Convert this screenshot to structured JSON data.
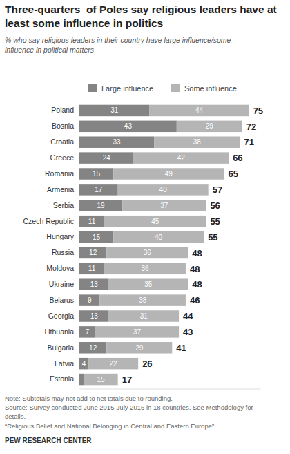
{
  "chart_data": {
    "type": "bar",
    "orientation": "horizontal",
    "stacked": true,
    "data_labels": true,
    "tick_labels": "y",
    "legend": "top",
    "grid": false,
    "title": [
      "Three-quarters  of Poles say religious leaders have at",
      "least some influence in politics"
    ],
    "subtitle": [
      "% who say religious leaders in their country have large influence/some",
      "influence in political matters"
    ],
    "categories": [
      "Poland",
      "Bosnia",
      "Croatia",
      "Greece",
      "Romania",
      "Armenia",
      "Serbia",
      "Czech Republic",
      "Hungary",
      "Russia",
      "Moldova",
      "Ukraine",
      "Belarus",
      "Georgia",
      "Lithuania",
      "Bulgaria",
      "Latvia",
      "Estonia"
    ],
    "series": [
      {
        "name": "Large influence",
        "color": "#848484",
        "values": [
          31,
          43,
          33,
          24,
          15,
          17,
          19,
          11,
          15,
          12,
          11,
          13,
          9,
          13,
          7,
          12,
          4,
          2
        ],
        "value_labels": [
          "31",
          "43",
          "33",
          "24",
          "15",
          "17",
          "19",
          "11",
          "15",
          "12",
          "11",
          "13",
          "9",
          "13",
          "7",
          "12",
          "4",
          null
        ]
      },
      {
        "name": "Some influence",
        "color": "#b5b5b5",
        "values": [
          44,
          29,
          38,
          42,
          49,
          40,
          37,
          45,
          40,
          36,
          36,
          35,
          38,
          31,
          37,
          29,
          22,
          15
        ]
      }
    ],
    "totals": [
      75,
      72,
      71,
      66,
      65,
      57,
      56,
      55,
      55,
      48,
      48,
      48,
      46,
      44,
      43,
      41,
      26,
      17
    ],
    "xlim": [
      0,
      80
    ],
    "xticks": [],
    "annotations": [
      "Note: Subtotals may not add to net totals due to rounding.",
      "Source: Survey conducted June 2015-July 2016 in 18 countries. See Methodology for",
      "details.",
      "“Religious Belief and National Belonging in Central and Eastern Europe”",
      "PEW RESEARCH CENTER"
    ]
  }
}
